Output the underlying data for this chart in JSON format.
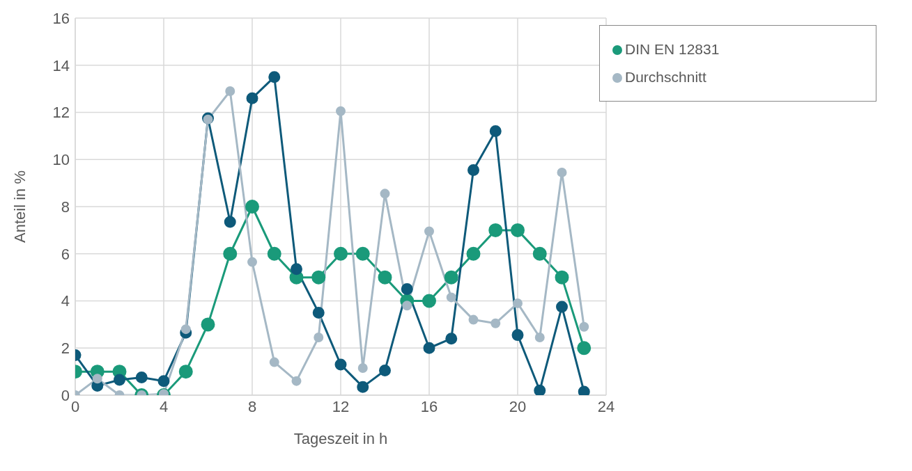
{
  "chart_data": {
    "type": "line",
    "xlabel": "Tageszeit in h",
    "ylabel": "Anteil in %",
    "x": [
      0,
      1,
      2,
      3,
      4,
      5,
      6,
      7,
      8,
      9,
      10,
      11,
      12,
      13,
      14,
      15,
      16,
      17,
      18,
      19,
      20,
      21,
      22,
      23
    ],
    "series": [
      {
        "name": "DIN EN 12831",
        "color": "#1a9a7a",
        "values": [
          1,
          1,
          1,
          0,
          0,
          1,
          3,
          6,
          8,
          6,
          5,
          5,
          6,
          6,
          5,
          4,
          4,
          5,
          6,
          7,
          7,
          6,
          5,
          2
        ]
      },
      {
        "color": "#0e5a7a",
        "values": [
          1.7,
          0.4,
          0.65,
          0.75,
          0.6,
          2.65,
          11.75,
          7.35,
          12.6,
          13.5,
          5.35,
          3.5,
          1.3,
          0.35,
          1.05,
          4.5,
          2.0,
          2.4,
          9.55,
          11.2,
          2.55,
          0.2,
          3.75,
          0.15
        ]
      },
      {
        "name": "Durchschnitt",
        "color": "#a5b8c5",
        "values": [
          0,
          0.7,
          0,
          0,
          0.05,
          2.8,
          11.7,
          12.9,
          5.65,
          1.4,
          0.6,
          2.45,
          12.05,
          1.15,
          8.55,
          3.8,
          6.95,
          4.15,
          3.2,
          3.05,
          3.9,
          2.45,
          9.45,
          2.9
        ]
      }
    ],
    "xlim": [
      0,
      24
    ],
    "xticks": [
      0,
      4,
      8,
      12,
      16,
      20,
      24
    ],
    "ylim": [
      0,
      16
    ],
    "yticks": [
      0,
      2,
      4,
      6,
      8,
      10,
      12,
      14,
      16
    ],
    "grid": true,
    "legend": "top right",
    "marker": "circle",
    "line_style": "solid"
  }
}
